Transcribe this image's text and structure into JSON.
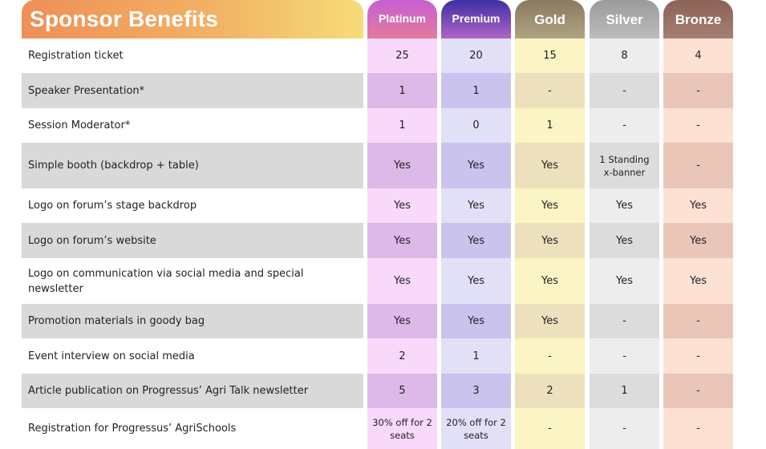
{
  "title": "Sponsor Benefits",
  "tiers": [
    {
      "name": "Platinum",
      "header_bg": "linear-gradient(180deg,#c65fd2,#e47a9c)",
      "light": "#f8d9fb",
      "dark": "#dcb9e8"
    },
    {
      "name": "Premium",
      "header_bg": "linear-gradient(180deg,#3d2fa2,#b064c8)",
      "light": "#e2e0f7",
      "dark": "#c9c3ee"
    },
    {
      "name": "Gold",
      "header_bg": "linear-gradient(180deg,#8a7a5f,#b0a383)",
      "light": "#fbf4c4",
      "dark": "#ede1bd"
    },
    {
      "name": "Silver",
      "header_bg": "linear-gradient(180deg,#9a9a9a,#bdbdbd)",
      "light": "#ededed",
      "dark": "#dcdcdc"
    },
    {
      "name": "Bronze",
      "header_bg": "linear-gradient(180deg,#8a6256,#a67f71)",
      "light": "#fde1d3",
      "dark": "#e9c6b8"
    }
  ],
  "colors": {
    "label_light": "#ffffff",
    "label_dark": "#d9d9d9"
  },
  "rows": [
    {
      "label": "Registration ticket",
      "values": [
        "25",
        "20",
        "15",
        "8",
        "4"
      ]
    },
    {
      "label": "Speaker Presentation*",
      "values": [
        "1",
        "1",
        "-",
        "-",
        "-"
      ]
    },
    {
      "label": "Session Moderator*",
      "values": [
        "1",
        "0",
        "1",
        "-",
        "-"
      ]
    },
    {
      "label": "Simple booth (backdrop + table)",
      "values": [
        "Yes",
        "Yes",
        "Yes",
        "1 Standing x-banner",
        "-"
      ]
    },
    {
      "label": "Logo on forum’s stage backdrop",
      "values": [
        "Yes",
        "Yes",
        "Yes",
        "Yes",
        "Yes"
      ]
    },
    {
      "label": "Logo on forum’s website",
      "values": [
        "Yes",
        "Yes",
        "Yes",
        "Yes",
        "Yes"
      ]
    },
    {
      "label": "Logo on communication via social media and special newsletter",
      "values": [
        "Yes",
        "Yes",
        "Yes",
        "Yes",
        "Yes"
      ]
    },
    {
      "label": "Promotion materials in goody bag",
      "values": [
        "Yes",
        "Yes",
        "Yes",
        "-",
        "-"
      ]
    },
    {
      "label": "Event interview on social media",
      "values": [
        "2",
        "1",
        "-",
        "-",
        "-"
      ]
    },
    {
      "label": "Article publication on Progressus’ Agri Talk newsletter",
      "values": [
        "5",
        "3",
        "2",
        "1",
        "-"
      ]
    },
    {
      "label": "Registration for Progressus’ AgriSchools",
      "values": [
        "30% off for 2 seats",
        "20% off for 2 seats",
        "-",
        "-",
        "-"
      ]
    }
  ]
}
